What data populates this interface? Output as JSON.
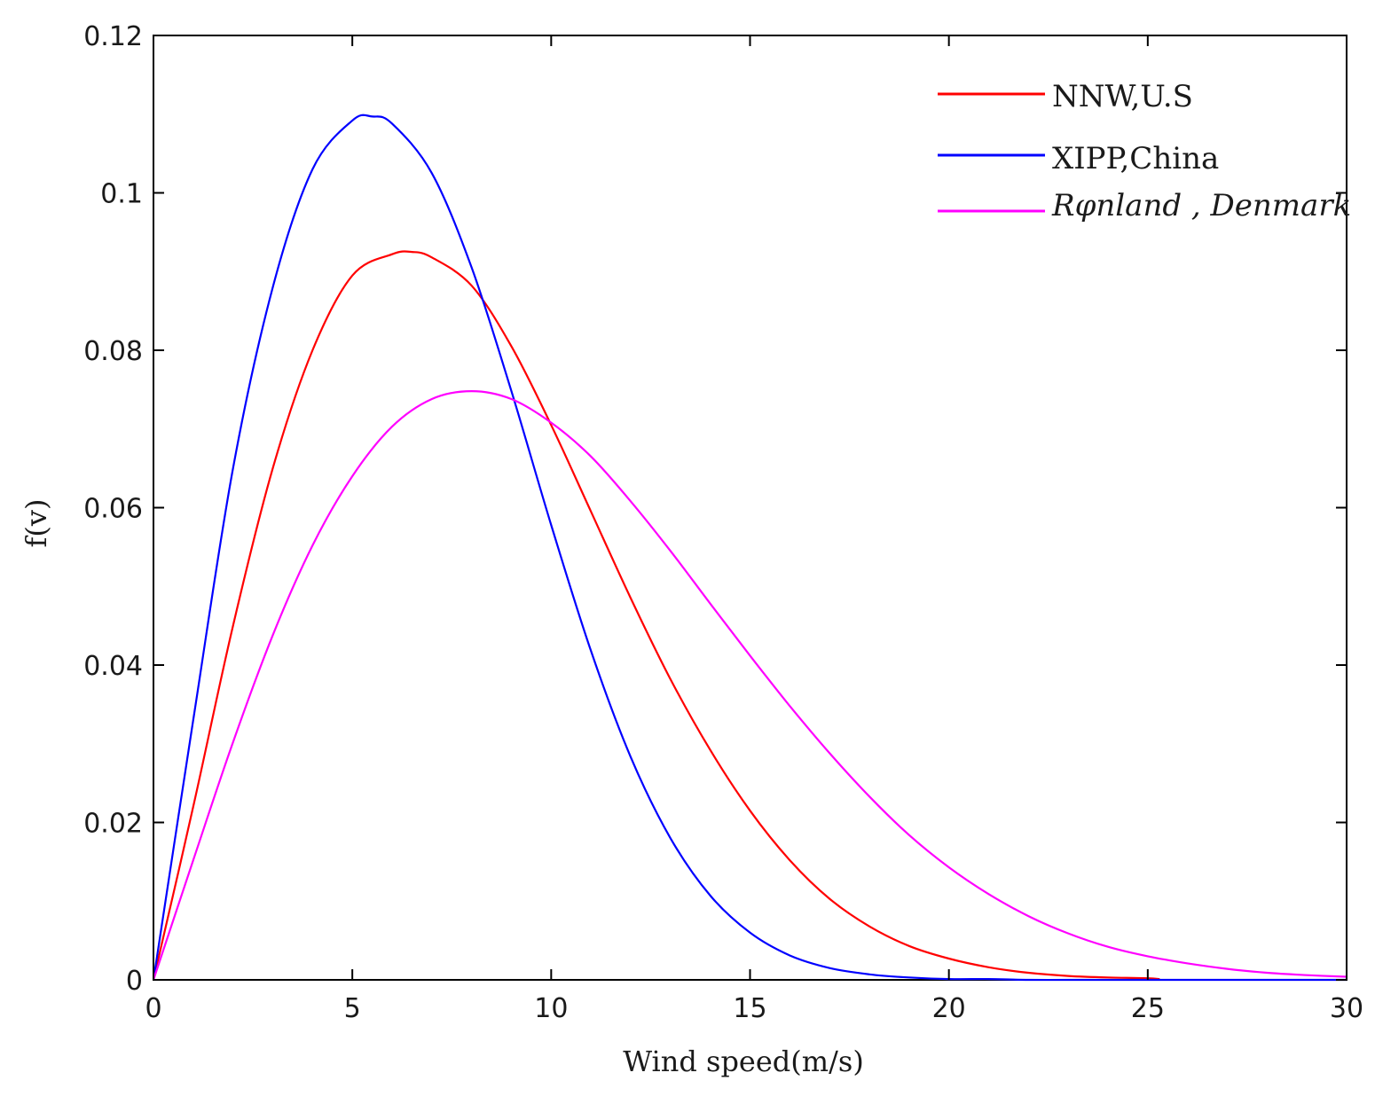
{
  "chart_data": {
    "type": "line",
    "title": "",
    "xlabel": "Wind speed(m/s)",
    "ylabel": "f(v)",
    "xlim": [
      0,
      30
    ],
    "ylim": [
      0,
      0.12
    ],
    "xticks": [
      0,
      5,
      10,
      15,
      20,
      25,
      30
    ],
    "yticks": [
      0,
      0.02,
      0.04,
      0.06,
      0.08,
      0.1,
      0.12
    ],
    "xtick_labels": [
      "0",
      "5",
      "10",
      "15",
      "20",
      "25",
      "30"
    ],
    "ytick_labels": [
      "0",
      "0.02",
      "0.04",
      "0.06",
      "0.08",
      "0.1",
      "0.12"
    ],
    "grid": false,
    "legend_position": "top-right",
    "series": [
      {
        "name": "NNW,U.S",
        "color": "#ff0000",
        "x": [
          0,
          1,
          2,
          3,
          4,
          5,
          6,
          6.5,
          7,
          8,
          9,
          10,
          11,
          12,
          13,
          14,
          15,
          16,
          17,
          18,
          19,
          20,
          21,
          22,
          23,
          24,
          25,
          25.3
        ],
        "y": [
          0,
          0.022,
          0.045,
          0.065,
          0.08,
          0.0895,
          0.0922,
          0.0925,
          0.0918,
          0.0882,
          0.0805,
          0.0705,
          0.0595,
          0.0485,
          0.0382,
          0.0292,
          0.0215,
          0.0152,
          0.0103,
          0.0068,
          0.0043,
          0.0027,
          0.0016,
          0.0009,
          0.0005,
          0.0003,
          0.0002,
          0.0001
        ]
      },
      {
        "name": "XIPP,China",
        "color": "#0000ff",
        "x": [
          0,
          1,
          2,
          3,
          4,
          5,
          5.5,
          6,
          7,
          8,
          9,
          10,
          11,
          12,
          13,
          14,
          15,
          16,
          17,
          18,
          19,
          20,
          21,
          22,
          23,
          24,
          25,
          26,
          27,
          28,
          29,
          30
        ],
        "y": [
          0,
          0.033,
          0.065,
          0.088,
          0.103,
          0.1092,
          0.1097,
          0.1088,
          0.1025,
          0.0905,
          0.0748,
          0.0578,
          0.0418,
          0.0283,
          0.018,
          0.0107,
          0.006,
          0.0031,
          0.0015,
          0.0007,
          0.0003,
          0.0001,
          0.0001,
          0,
          0,
          0,
          0,
          0,
          0,
          0,
          0,
          0
        ]
      },
      {
        "name": "Rφnland , Denmark",
        "color": "#ff00ff",
        "x": [
          0,
          1,
          2,
          3,
          4,
          5,
          6,
          7,
          8,
          9,
          10,
          11,
          12,
          13,
          14,
          15,
          16,
          17,
          18,
          19,
          20,
          21,
          22,
          23,
          24,
          25,
          26,
          27,
          28,
          29,
          30
        ],
        "y": [
          0,
          0.0152,
          0.0302,
          0.0438,
          0.0552,
          0.064,
          0.0703,
          0.0738,
          0.0748,
          0.0738,
          0.0708,
          0.0665,
          0.0608,
          0.0545,
          0.0478,
          0.0412,
          0.0348,
          0.0288,
          0.0233,
          0.0184,
          0.0143,
          0.0109,
          0.0081,
          0.0059,
          0.0042,
          0.003,
          0.0021,
          0.0014,
          0.0009,
          0.0006,
          0.0004
        ]
      }
    ]
  }
}
